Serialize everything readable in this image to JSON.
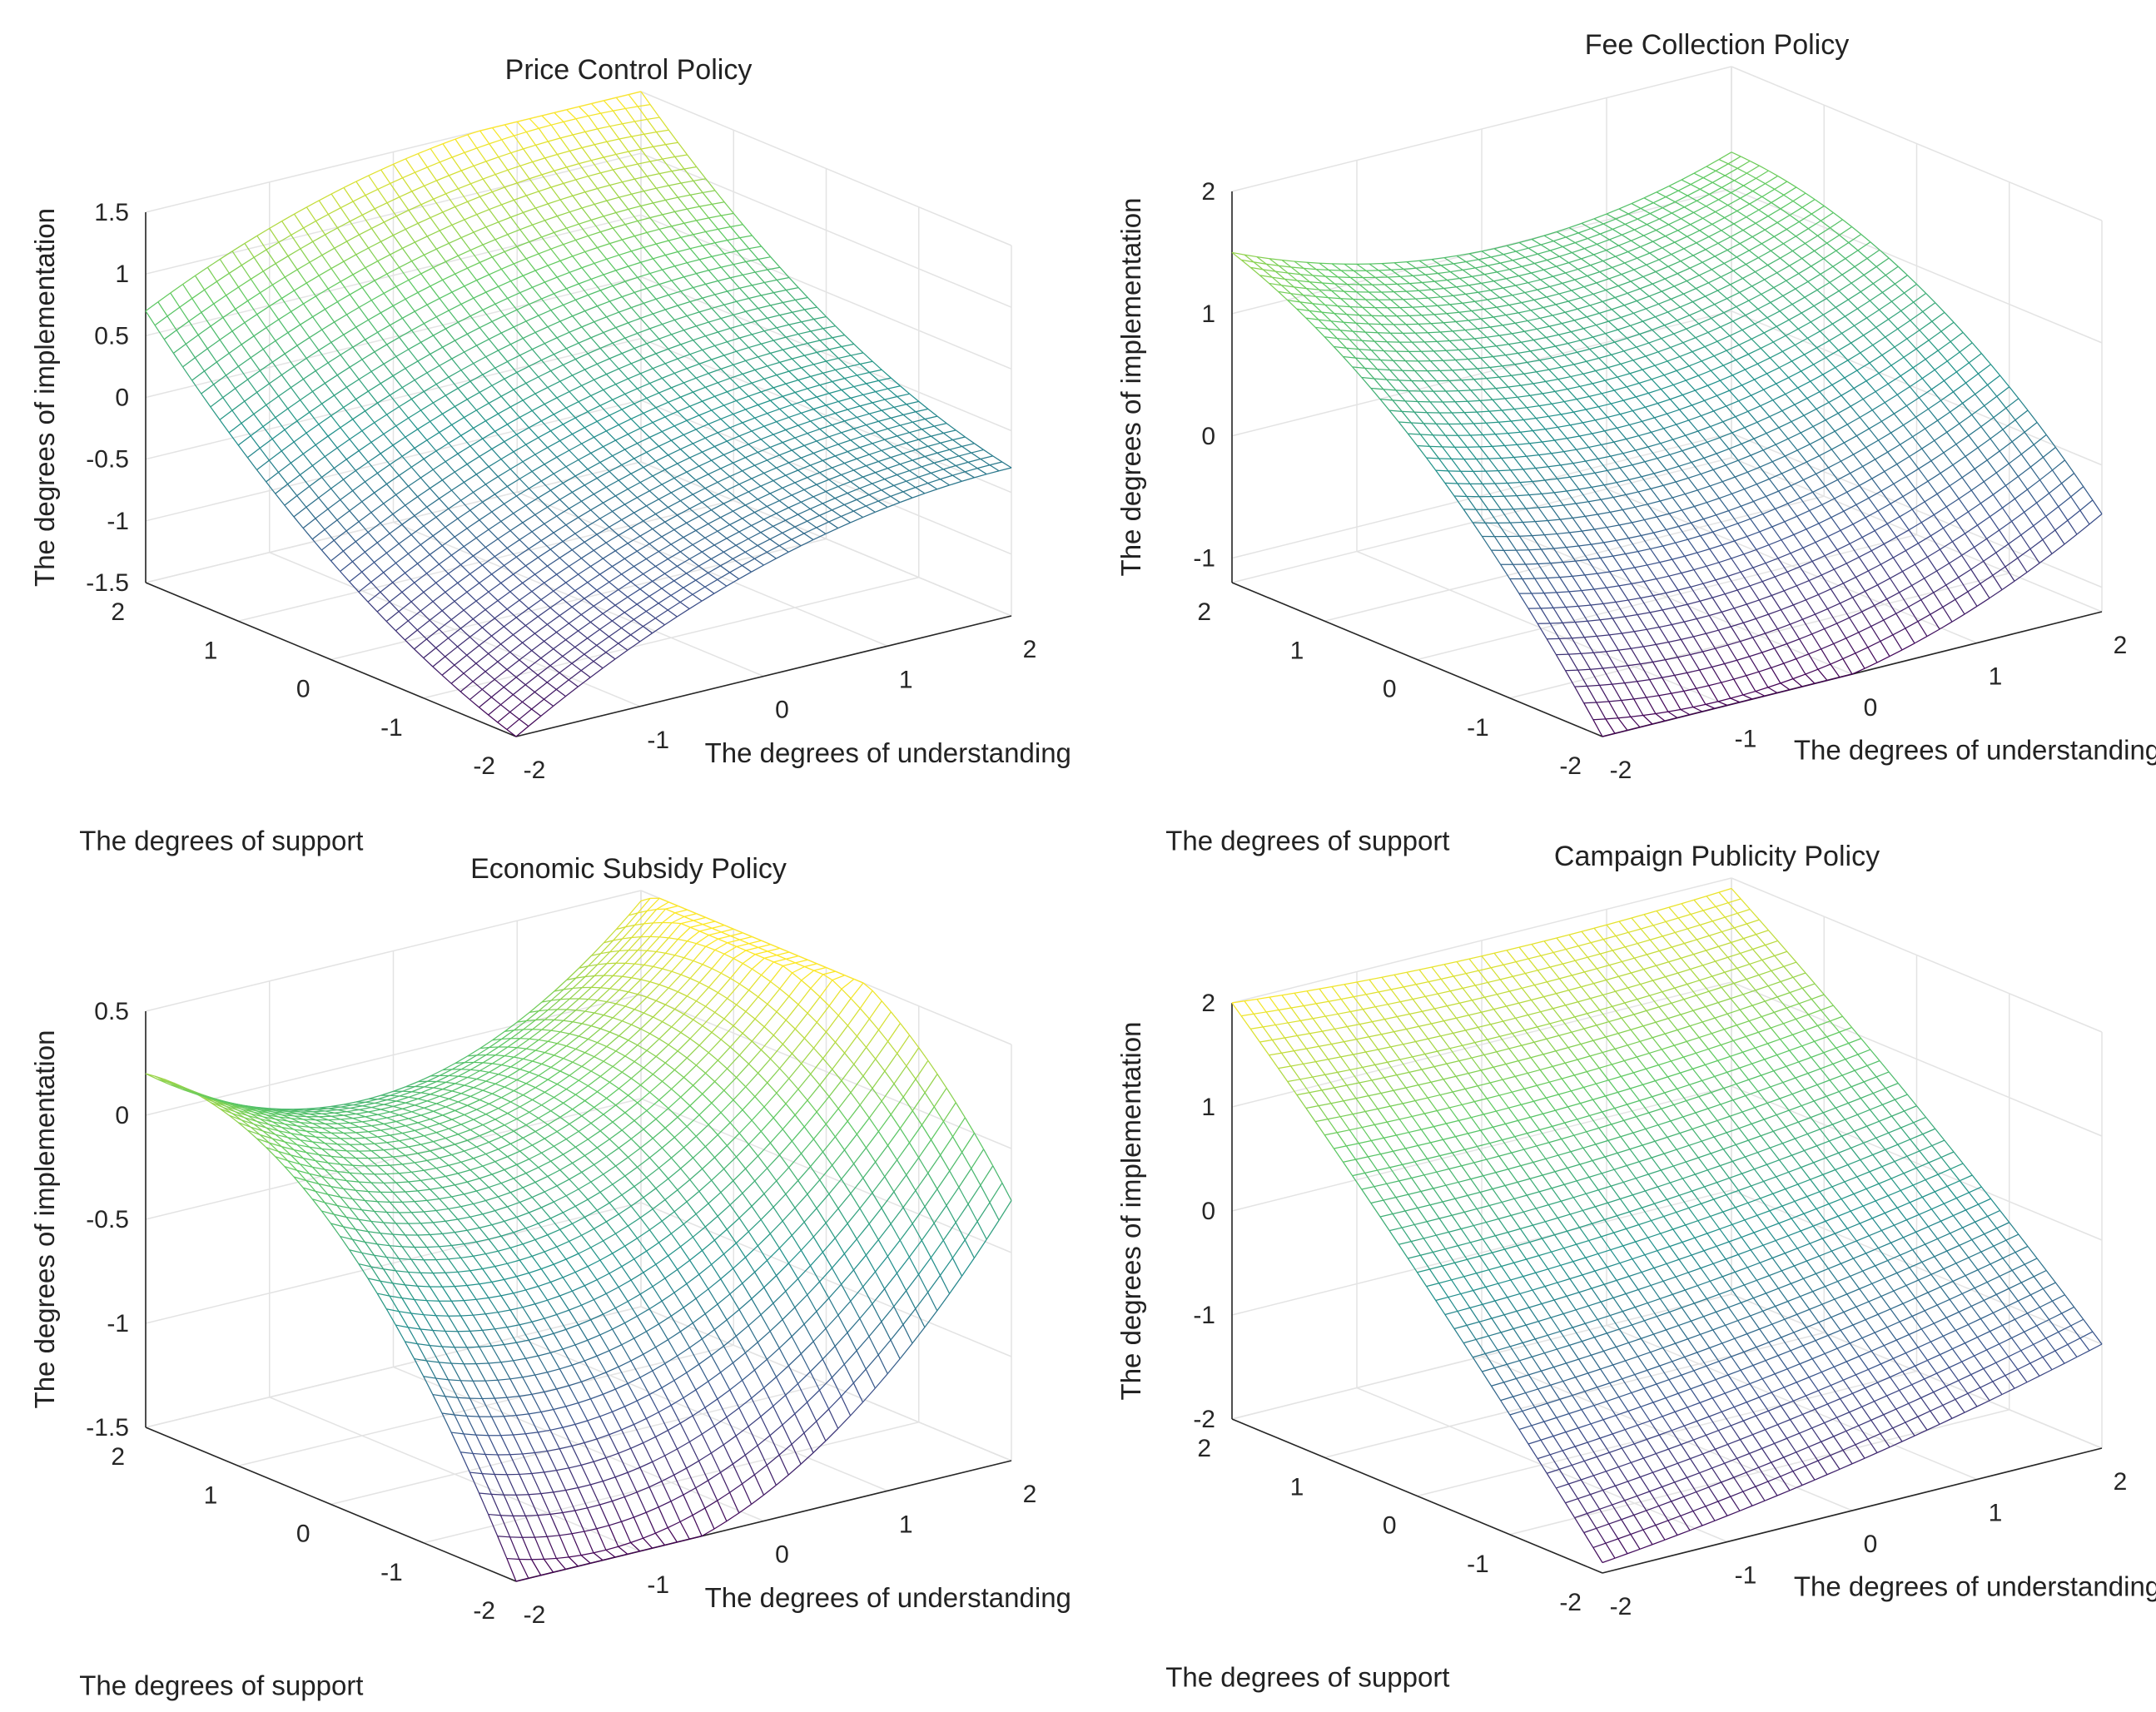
{
  "figure": {
    "layout": "2x2 grid of 3D mesh surface plots"
  },
  "chart_data": [
    {
      "type": "surface",
      "title": "Price Control Policy",
      "xlabel": "The degrees of understanding",
      "ylabel": "The degrees of support",
      "zlabel": "The degrees of implementation",
      "xlim": [
        -2,
        2
      ],
      "ylim": [
        -2,
        2
      ],
      "zlim": [
        -1.5,
        1.5
      ],
      "xticks": [
        "-2",
        "-1",
        "0",
        "1",
        "2"
      ],
      "yticks": [
        "-2",
        "-1",
        "0",
        "1",
        "2"
      ],
      "zticks": [
        "-1.5",
        "-1",
        "-0.5",
        "0",
        "0.5",
        "1",
        "1.5"
      ],
      "corners": {
        "x-2_y2": 0.7,
        "x2_y2": 1.5,
        "x2_y-2": -0.3,
        "x-2_y-2": -1.5
      },
      "curvature": -0.15,
      "grid": true
    },
    {
      "type": "surface",
      "title": "Fee Collection Policy",
      "xlabel": "The degrees of understanding",
      "ylabel": "The degrees of support",
      "zlabel": "The degrees of implementation",
      "xlim": [
        -2,
        2
      ],
      "ylim": [
        -2,
        2
      ],
      "zlim": [
        -1.2,
        2
      ],
      "xticks": [
        "-2",
        "-1",
        "0",
        "1",
        "2"
      ],
      "yticks": [
        "-2",
        "-1",
        "0",
        "1",
        "2"
      ],
      "zticks": [
        "-1",
        "0",
        "1",
        "2"
      ],
      "corners": {
        "x-2_y2": 1.5,
        "x2_y2": 1.3,
        "x2_y-2": -0.4,
        "x-2_y-2": -1.2
      },
      "curvature": 0.2,
      "grid": true
    },
    {
      "type": "surface",
      "title": "Economic Subsidy Policy",
      "xlabel": "The degrees of understanding",
      "ylabel": "The degrees of support",
      "zlabel": "The degrees of implementation",
      "xlim": [
        -2,
        2
      ],
      "ylim": [
        -2,
        2
      ],
      "zlim": [
        -1.5,
        0.5
      ],
      "xticks": [
        "-2",
        "-1",
        "0",
        "1",
        "2"
      ],
      "yticks": [
        "-2",
        "-1",
        "0",
        "1",
        "2"
      ],
      "zticks": [
        "-1.5",
        "-1",
        "-0.5",
        "0",
        "0.5"
      ],
      "corners": {
        "x-2_y2": 0.2,
        "x2_y2": 0.45,
        "x2_y-2": -0.25,
        "x-2_y-2": -1.5
      },
      "curvature": 0.25,
      "grid": true
    },
    {
      "type": "surface",
      "title": "Campaign Publicity Policy",
      "xlabel": "The degrees of understanding",
      "ylabel": "The degrees of support",
      "zlabel": "The degrees of implementation",
      "xlim": [
        -2,
        2
      ],
      "ylim": [
        -2,
        2
      ],
      "zlim": [
        -2,
        2
      ],
      "xticks": [
        "-2",
        "-1",
        "0",
        "1",
        "2"
      ],
      "yticks": [
        "-2",
        "-1",
        "0",
        "1",
        "2"
      ],
      "zticks": [
        "-2",
        "-1",
        "0",
        "1",
        "2"
      ],
      "corners": {
        "x-2_y2": 2.0,
        "x2_y2": 1.9,
        "x2_y-2": -1.0,
        "x-2_y-2": -1.9
      },
      "curvature": 0.05,
      "grid": true
    }
  ],
  "colormap": [
    "#440154",
    "#3b528b",
    "#21918c",
    "#5ec962",
    "#fde725"
  ]
}
